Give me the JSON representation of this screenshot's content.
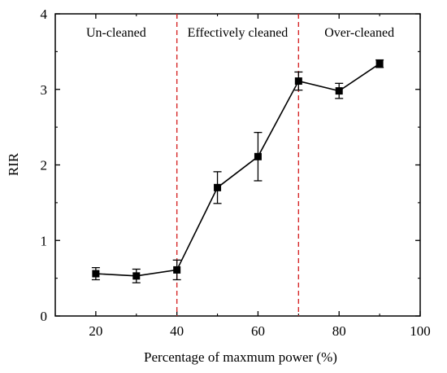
{
  "chart_data": {
    "type": "line",
    "title": "",
    "xlabel": "Percentage of maxmum power (%)",
    "ylabel": "RIR",
    "xlim": [
      10,
      100
    ],
    "ylim": [
      0,
      4
    ],
    "xticks": [
      20,
      40,
      60,
      80,
      100
    ],
    "yticks": [
      0,
      1,
      2,
      3,
      4
    ],
    "grid": false,
    "legend": "none",
    "series": [
      {
        "x": [
          20,
          30,
          40,
          50,
          60,
          70,
          80,
          90
        ],
        "y": [
          0.56,
          0.53,
          0.61,
          1.7,
          2.11,
          3.11,
          2.98,
          3.34
        ],
        "error": [
          0.08,
          0.09,
          0.13,
          0.21,
          0.32,
          0.12,
          0.1,
          0.05
        ],
        "color": "#000000",
        "marker": "square"
      }
    ],
    "vlines": [
      {
        "x": 40,
        "color": "#d62728",
        "style": "dashed"
      },
      {
        "x": 70,
        "color": "#d62728",
        "style": "dashed"
      }
    ],
    "annotations": [
      {
        "text": "Un-cleaned",
        "x": 25,
        "y": 3.7
      },
      {
        "text": "Effectively cleaned",
        "x": 55,
        "y": 3.7
      },
      {
        "text": "Over-cleaned",
        "x": 85,
        "y": 3.7
      }
    ]
  }
}
